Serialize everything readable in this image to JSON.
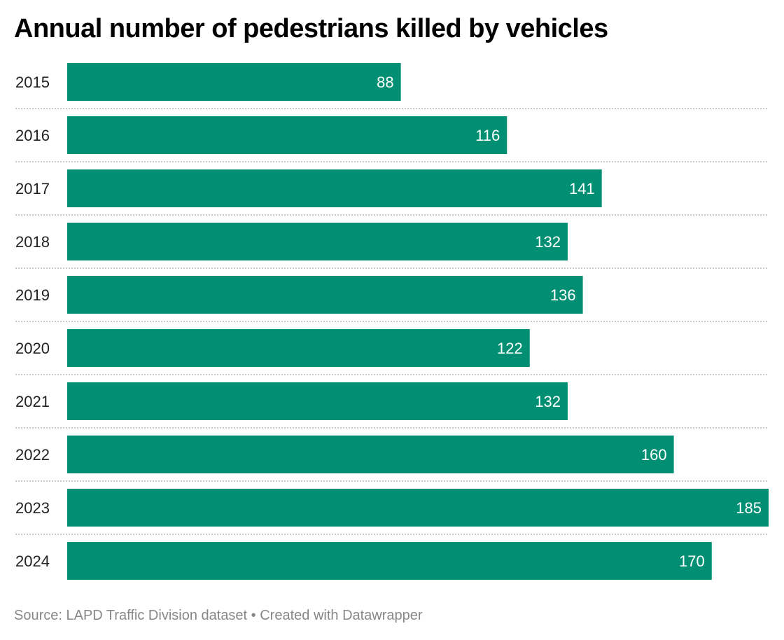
{
  "chart_data": {
    "type": "bar",
    "orientation": "horizontal",
    "title": "Annual number of pedestrians killed by vehicles",
    "categories": [
      "2015",
      "2016",
      "2017",
      "2018",
      "2019",
      "2020",
      "2021",
      "2022",
      "2023",
      "2024"
    ],
    "values": [
      88,
      116,
      141,
      132,
      136,
      122,
      132,
      160,
      185,
      170
    ],
    "data_labels": [
      "88",
      "116",
      "141",
      "132",
      "136",
      "122",
      "132",
      "160",
      "185",
      "170"
    ],
    "xlabel": "",
    "ylabel": "",
    "xlim": [
      0,
      185
    ],
    "grid": false,
    "legend": "none",
    "bar_color": "#008f73",
    "label_color": "#ffffff"
  },
  "footer": {
    "source": "Source: LAPD Traffic Division dataset • Created with Datawrapper"
  }
}
